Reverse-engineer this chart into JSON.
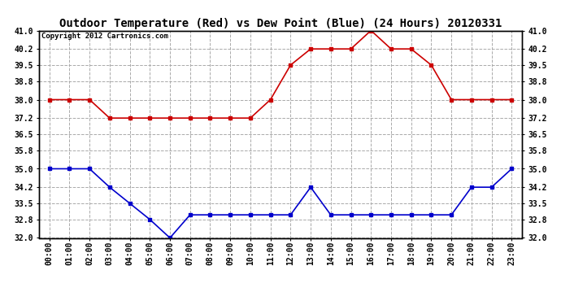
{
  "title": "Outdoor Temperature (Red) vs Dew Point (Blue) (24 Hours) 20120331",
  "copyright": "Copyright 2012 Cartronics.com",
  "hours": [
    0,
    1,
    2,
    3,
    4,
    5,
    6,
    7,
    8,
    9,
    10,
    11,
    12,
    13,
    14,
    15,
    16,
    17,
    18,
    19,
    20,
    21,
    22,
    23
  ],
  "hour_labels": [
    "00:00",
    "01:00",
    "02:00",
    "03:00",
    "04:00",
    "05:00",
    "06:00",
    "07:00",
    "08:00",
    "09:00",
    "10:00",
    "11:00",
    "12:00",
    "13:00",
    "14:00",
    "15:00",
    "16:00",
    "17:00",
    "18:00",
    "19:00",
    "20:00",
    "21:00",
    "22:00",
    "23:00"
  ],
  "temp_red": [
    38.0,
    38.0,
    38.0,
    37.2,
    37.2,
    37.2,
    37.2,
    37.2,
    37.2,
    37.2,
    37.2,
    38.0,
    39.5,
    40.2,
    40.2,
    40.2,
    41.0,
    40.2,
    40.2,
    39.5,
    38.0,
    38.0,
    38.0,
    38.0
  ],
  "dew_blue": [
    35.0,
    35.0,
    35.0,
    34.2,
    33.5,
    32.8,
    32.0,
    33.0,
    33.0,
    33.0,
    33.0,
    33.0,
    33.0,
    34.2,
    33.0,
    33.0,
    33.0,
    33.0,
    33.0,
    33.0,
    33.0,
    34.2,
    34.2,
    35.0
  ],
  "red_color": "#cc0000",
  "blue_color": "#0000cc",
  "bg_color": "#ffffff",
  "plot_bg_color": "#ffffff",
  "grid_color": "#aaaaaa",
  "ylim_min": 32.0,
  "ylim_max": 41.0,
  "yticks": [
    32.0,
    32.8,
    33.5,
    34.2,
    35.0,
    35.8,
    36.5,
    37.2,
    38.0,
    38.8,
    39.5,
    40.2,
    41.0
  ],
  "title_fontsize": 10,
  "copyright_fontsize": 6.5,
  "tick_fontsize": 7,
  "marker": "s",
  "markersize": 3,
  "linewidth": 1.2
}
